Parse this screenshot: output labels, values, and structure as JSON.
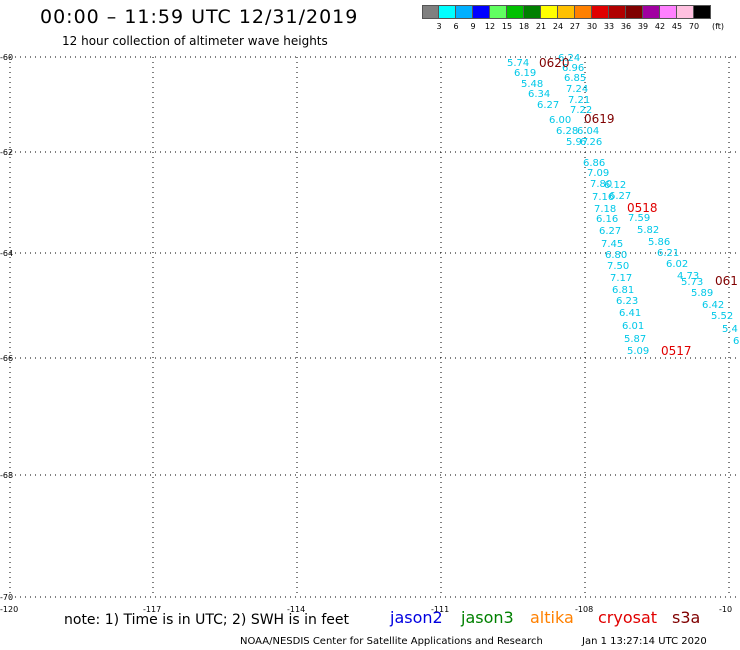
{
  "header": {
    "title": "00:00 – 11:59 UTC 12/31/2019",
    "subtitle": "12 hour collection of altimeter wave heights"
  },
  "color_scale": {
    "colors": [
      "#808080",
      "#00ffff",
      "#00b0ff",
      "#0000ff",
      "#60ff60",
      "#00c000",
      "#008000",
      "#ffff00",
      "#ffc000",
      "#ff8000",
      "#e00000",
      "#b00000",
      "#800000",
      "#a000a0",
      "#ff80ff",
      "#ffc0e0",
      "#000000"
    ],
    "labels": [
      "3",
      "6",
      "9",
      "12",
      "15",
      "18",
      "21",
      "24",
      "27",
      "30",
      "33",
      "36",
      "39",
      "42",
      "45",
      "70"
    ],
    "unit": "(ft)"
  },
  "axes": {
    "lat_labels": [
      "-60",
      "-62",
      "-64",
      "-66",
      "-68",
      "-70"
    ],
    "lon_labels": [
      "-120",
      "-117",
      "-114",
      "-111",
      "-108",
      "-10"
    ]
  },
  "track_labels": [
    {
      "text": "0620",
      "color": "#800000"
    },
    {
      "text": "0619",
      "color": "#800000"
    },
    {
      "text": "0518",
      "color": "#e00000"
    },
    {
      "text": "0517",
      "color": "#e00000"
    },
    {
      "text": "061",
      "color": "#800000"
    }
  ],
  "wave_values": [
    "5.74",
    "6.19",
    "5.48",
    "6.34",
    "6.27",
    "6.24",
    "6.96",
    "6.85",
    "7.24",
    "7.21",
    "7.22",
    "6.00",
    "6.28",
    "5.97",
    "6.04",
    "6.26",
    "6.86",
    "7.09",
    "7.80",
    "7.16",
    "7.18",
    "6.16",
    "6.27",
    "7.45",
    "6.80",
    "7.50",
    "7.17",
    "6.81",
    "6.23",
    "6.41",
    "6.01",
    "5.87",
    "5.09",
    "6.12",
    "6.27",
    "7.59",
    "5.82",
    "5.86",
    "6.21",
    "6.02",
    "4.73",
    "5.73",
    "5.89",
    "6.42",
    "5.52",
    "5.4",
    "6"
  ],
  "footer": {
    "note": "note: 1) Time is in UTC; 2) SWH is in feet",
    "satellites": [
      {
        "name": "jason2",
        "color": "#0000e0"
      },
      {
        "name": "jason3",
        "color": "#008000"
      },
      {
        "name": "altika",
        "color": "#ff8000"
      },
      {
        "name": "cryosat",
        "color": "#e00000"
      },
      {
        "name": "s3a",
        "color": "#800000"
      }
    ],
    "credit": "NOAA/NESDIS Center for Satellite Applications and Research",
    "timestamp": "Jan  1 13:27:14 UTC 2020"
  }
}
